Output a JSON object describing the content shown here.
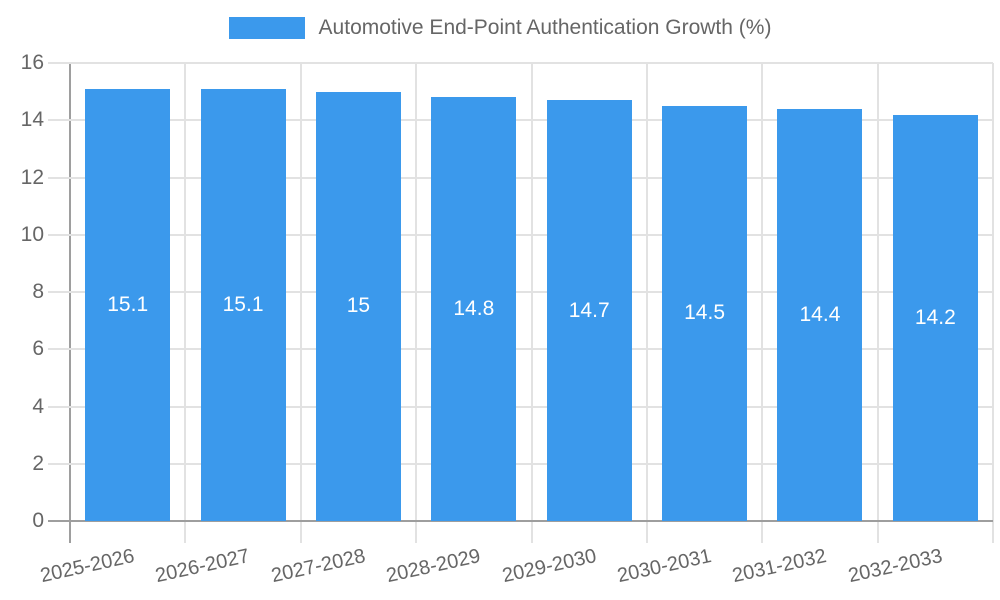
{
  "chart_data": {
    "type": "bar",
    "title": "Automotive End-Point Authentication Growth (%)",
    "xlabel": "",
    "ylabel": "",
    "categories": [
      "2025-2026",
      "2026-2027",
      "2027-2028",
      "2028-2029",
      "2029-2030",
      "2030-2031",
      "2031-2032",
      "2032-2033"
    ],
    "values": [
      15.1,
      15.1,
      15,
      14.8,
      14.7,
      14.5,
      14.4,
      14.2
    ],
    "value_labels": [
      "15.1",
      "15.1",
      "15",
      "14.8",
      "14.7",
      "14.5",
      "14.4",
      "14.2"
    ],
    "ylim": [
      0,
      16
    ],
    "y_ticks": [
      0,
      2,
      4,
      6,
      8,
      10,
      12,
      14,
      16
    ],
    "grid": true,
    "legend_position": "top",
    "x_tick_rotation_deg": -12.5,
    "colors": {
      "bar": "#3B99EC",
      "value_label": "#FFFFFF",
      "grid": "#E2E2E2",
      "axis": "#9E9E9E",
      "tick_label": "#666666",
      "legend_label": "#666666",
      "background": "#FFFFFF"
    }
  }
}
